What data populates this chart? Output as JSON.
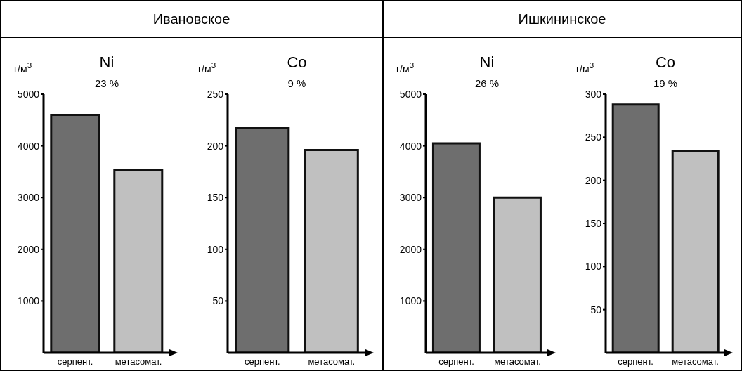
{
  "chart_data": [
    {
      "type": "bar",
      "title": "Ивановское",
      "subtitle": "Ni",
      "ylabel": "г/м$^{3}$",
      "annotations": [
        "23 %"
      ],
      "categories": [
        "серпент.",
        "метасомат."
      ],
      "values": [
        4600,
        3530
      ],
      "colors": [
        "#6e6e6e",
        "#c0c0c0"
      ],
      "ylim": [
        0,
        5000
      ],
      "yticks": [
        1000,
        2000,
        3000,
        4000,
        5000
      ],
      "grid": false,
      "legend": false
    },
    {
      "type": "bar",
      "subtitle": "Co",
      "ylabel": "г/м$^{3}$",
      "annotations": [
        "9 %"
      ],
      "categories": [
        "серпент.",
        "метасомат."
      ],
      "values": [
        217,
        196
      ],
      "colors": [
        "#6e6e6e",
        "#c0c0c0"
      ],
      "ylim": [
        0,
        250
      ],
      "yticks": [
        50,
        100,
        150,
        200,
        250
      ],
      "grid": false,
      "legend": false
    },
    {
      "type": "bar",
      "title": "Ишкининское",
      "subtitle": "Ni",
      "ylabel": "г/м$^{3}$",
      "annotations": [
        "26 %"
      ],
      "categories": [
        "серпент.",
        "метасомат."
      ],
      "values": [
        4050,
        3000
      ],
      "colors": [
        "#6e6e6e",
        "#c0c0c0"
      ],
      "ylim": [
        0,
        5000
      ],
      "yticks": [
        1000,
        2000,
        3000,
        4000,
        5000
      ],
      "grid": false,
      "legend": false
    },
    {
      "type": "bar",
      "subtitle": "Co",
      "ylabel": "г/м$^{3}$",
      "annotations": [
        "19 %"
      ],
      "categories": [
        "серпент.",
        "метасомат."
      ],
      "values": [
        288,
        234
      ],
      "colors": [
        "#6e6e6e",
        "#c0c0c0"
      ],
      "ylim": [
        0,
        300
      ],
      "yticks": [
        50,
        100,
        150,
        200,
        250,
        300
      ],
      "grid": false,
      "legend": false
    }
  ]
}
